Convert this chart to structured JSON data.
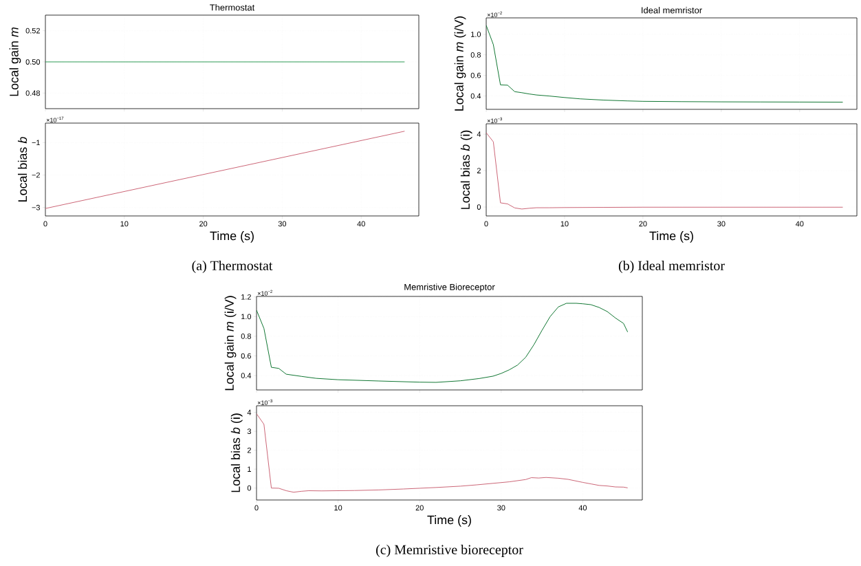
{
  "chart_data": [
    {
      "type": "line",
      "title": "Thermostat",
      "ylabel": "Local gain *m*",
      "x": [
        0,
        45.5
      ],
      "values": [
        0.5,
        0.5
      ],
      "color": "#2e9a55",
      "xlim": [
        0,
        47.3
      ],
      "ylim": [
        0.47,
        0.53
      ],
      "xticks": [
        0,
        10,
        20,
        30,
        40
      ],
      "yticks": [
        {
          "value": 0.48,
          "label": "0.48"
        },
        {
          "value": 0.5,
          "label": "0.50"
        },
        {
          "value": 0.52,
          "label": "0.52"
        }
      ],
      "grid": true,
      "tick_labels": "y"
    },
    {
      "type": "line",
      "ylabel": "Local bias *b*",
      "xlabel": "Time (s)",
      "x": [
        0,
        45.5
      ],
      "values": [
        -3.03,
        -0.65
      ],
      "color": "#cc6677",
      "xlim": [
        0,
        47.3
      ],
      "ylim": [
        -3.26,
        -0.4
      ],
      "xticks": [
        0,
        10,
        20,
        30,
        40
      ],
      "yticks": [
        {
          "value": -3,
          "label": "−3"
        },
        {
          "value": -2,
          "label": "−2"
        },
        {
          "value": -1,
          "label": "−1"
        }
      ],
      "grid": true,
      "annotations": [
        "×10$^{−17}$",
        "(a) Thermostat"
      ]
    },
    {
      "type": "line",
      "title": "Ideal memristor",
      "ylabel": "Local gain *m* (i/V)",
      "x": [
        0,
        0.91,
        1.82,
        2.73,
        3.64,
        4.55,
        5.46,
        6.4,
        8,
        10,
        12,
        15,
        18,
        20,
        25,
        30,
        35,
        40,
        45.5
      ],
      "values": [
        1.087,
        0.9,
        0.508,
        0.505,
        0.442,
        0.432,
        0.42,
        0.41,
        0.4,
        0.385,
        0.372,
        0.36,
        0.352,
        0.348,
        0.345,
        0.343,
        0.342,
        0.341,
        0.34
      ],
      "color": "#117733",
      "xlim": [
        0,
        47.3
      ],
      "ylim": [
        0.27,
        1.16
      ],
      "xticks": [
        0,
        10,
        20,
        30,
        40
      ],
      "yticks": [
        {
          "value": 0.4,
          "label": "0.4"
        },
        {
          "value": 0.6,
          "label": "0.6"
        },
        {
          "value": 0.8,
          "label": "0.8"
        },
        {
          "value": 1.0,
          "label": "1.0"
        }
      ],
      "grid": true,
      "tick_labels": "y",
      "annotations": [
        "×10$^{−2}$"
      ]
    },
    {
      "type": "line",
      "ylabel": "Local bias *b* (i)",
      "xlabel": "Time (s)",
      "x": [
        0,
        0.91,
        1.82,
        2.73,
        3.64,
        4.55,
        5.46,
        6.4,
        8,
        10,
        15,
        20,
        30,
        45.5
      ],
      "values": [
        4.08,
        3.58,
        0.23,
        0.17,
        -0.05,
        -0.11,
        -0.07,
        -0.04,
        -0.04,
        -0.03,
        -0.02,
        -0.01,
        -0.01,
        -0.01
      ],
      "color": "#cc6677",
      "xlim": [
        0,
        47.3
      ],
      "ylim": [
        -0.49,
        4.57
      ],
      "xticks": [
        0,
        10,
        20,
        30,
        40
      ],
      "yticks": [
        0,
        2,
        4
      ],
      "grid": true,
      "annotations": [
        "×10$^{−3}$",
        "(b) Ideal memristor"
      ]
    },
    {
      "type": "line",
      "title": "Memristive Bioreceptor",
      "ylabel": "Local gain *m* (i/V)",
      "x": [
        0,
        0.91,
        1.82,
        2.73,
        3.64,
        5.5,
        7.3,
        10,
        15,
        20,
        22,
        25,
        27.3,
        29,
        30,
        31,
        32,
        33,
        34,
        35,
        36,
        37,
        38,
        39.2,
        40,
        41,
        42,
        43,
        44,
        45,
        45.5
      ],
      "values": [
        1.065,
        0.879,
        0.484,
        0.473,
        0.414,
        0.392,
        0.372,
        0.358,
        0.345,
        0.333,
        0.331,
        0.347,
        0.37,
        0.394,
        0.422,
        0.459,
        0.507,
        0.586,
        0.713,
        0.86,
        1.0,
        1.098,
        1.135,
        1.135,
        1.13,
        1.121,
        1.093,
        1.051,
        0.986,
        0.93,
        0.843
      ],
      "color": "#117733",
      "xlim": [
        0,
        47.3
      ],
      "ylim": [
        0.254,
        1.205
      ],
      "xticks": [
        0,
        10,
        20,
        30,
        40
      ],
      "yticks": [
        {
          "value": 0.4,
          "label": "0.4"
        },
        {
          "value": 0.6,
          "label": "0.6"
        },
        {
          "value": 0.8,
          "label": "0.8"
        },
        {
          "value": 1.0,
          "label": "1.0"
        },
        {
          "value": 1.2,
          "label": "1.2"
        }
      ],
      "grid": true,
      "tick_labels": "y",
      "annotations": [
        "×10$^{−2}$"
      ]
    },
    {
      "type": "line",
      "ylabel": "Local bias *b* (i)",
      "xlabel": "Time (s)",
      "x": [
        0,
        0.91,
        1.82,
        2.73,
        3.64,
        4.55,
        5.5,
        6.4,
        8,
        10,
        12,
        15,
        18,
        20,
        22,
        25,
        27,
        29,
        31,
        33,
        33.7,
        34.6,
        35.5,
        37,
        38.2,
        40,
        41,
        42,
        43,
        44,
        45,
        45.5
      ],
      "values": [
        3.93,
        3.37,
        0.0,
        -0.01,
        -0.14,
        -0.22,
        -0.17,
        -0.14,
        -0.15,
        -0.14,
        -0.13,
        -0.1,
        -0.05,
        -0.01,
        0.03,
        0.1,
        0.17,
        0.25,
        0.33,
        0.45,
        0.55,
        0.53,
        0.56,
        0.52,
        0.46,
        0.3,
        0.22,
        0.14,
        0.11,
        0.06,
        0.05,
        0.01
      ],
      "color": "#cc6677",
      "xlim": [
        0,
        47.3
      ],
      "ylim": [
        -0.63,
        4.35
      ],
      "xticks": [
        0,
        10,
        20,
        30,
        40
      ],
      "yticks": [
        0,
        1,
        2,
        3,
        4
      ],
      "grid": true,
      "annotations": [
        "×10$^{−3}$",
        "(c) Memristive bioreceptor"
      ]
    }
  ]
}
